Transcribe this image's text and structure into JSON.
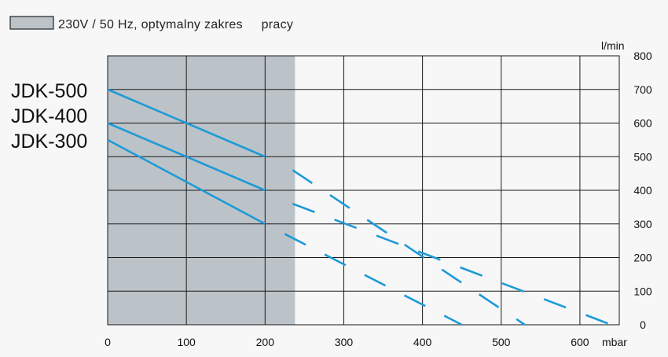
{
  "legend": {
    "text": "230V / 50 Hz, optymalny zakres     pracy",
    "swatch_color": "#bcc3c8"
  },
  "chart_data": {
    "type": "line",
    "x_unit": "mbar",
    "y_unit": "l/min",
    "xlim": [
      0,
      650
    ],
    "ylim": [
      0,
      800
    ],
    "x_ticks": [
      0,
      100,
      200,
      300,
      400,
      500,
      600
    ],
    "y_ticks": [
      0,
      100,
      200,
      300,
      400,
      500,
      600,
      700,
      800
    ],
    "optimal_range": [
      0,
      238
    ],
    "optimal_color": "#bcc3c8",
    "line_color": "#1e9ad6",
    "series_labels": [
      "JDK-500",
      "JDK-400",
      "JDK-300"
    ],
    "series": [
      {
        "name": "JDK-500",
        "solid": [
          [
            0,
            700
          ],
          [
            200,
            500
          ]
        ],
        "dashed": [
          [
            235,
            460
          ],
          [
            530,
            0
          ]
        ]
      },
      {
        "name": "JDK-400",
        "solid": [
          [
            0,
            600
          ],
          [
            200,
            400
          ]
        ],
        "dashed": [
          [
            235,
            360
          ],
          [
            640,
            0
          ]
        ]
      },
      {
        "name": "JDK-300",
        "solid": [
          [
            0,
            550
          ],
          [
            200,
            300
          ]
        ],
        "dashed": [
          [
            225,
            270
          ],
          [
            450,
            0
          ]
        ]
      }
    ]
  }
}
